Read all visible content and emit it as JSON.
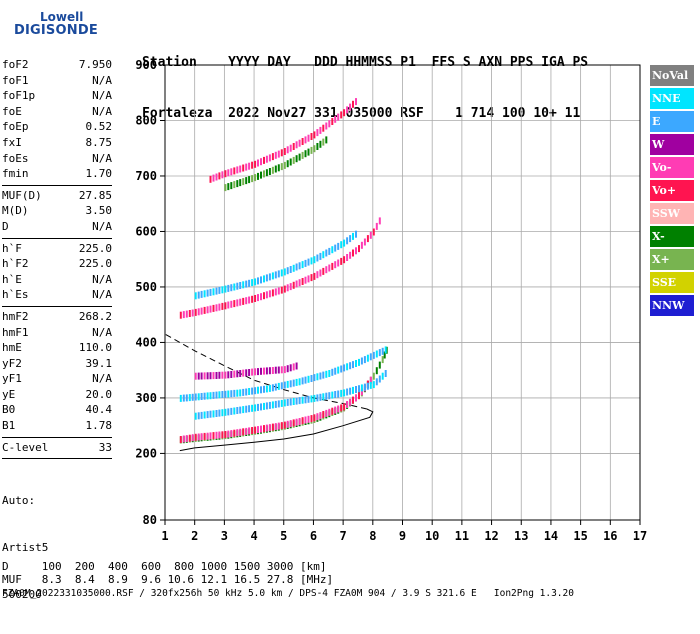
{
  "logo": {
    "top": "Lowell",
    "main": "DIGISONDE"
  },
  "header": {
    "line1": "Station    YYYY DAY   DDD HHMMSS P1  FFS S AXN PPS IGA PS",
    "line2": "Fortaleza  2022 Nov27 331 035000 RSF    1 714 100 10+ 11"
  },
  "params_a": [
    {
      "name": "foF2",
      "value": "7.950"
    },
    {
      "name": "foF1",
      "value": "N/A"
    },
    {
      "name": "foF1p",
      "value": "N/A"
    },
    {
      "name": "foE",
      "value": "N/A"
    },
    {
      "name": "foEp",
      "value": "0.52"
    },
    {
      "name": "fxI",
      "value": "8.75"
    },
    {
      "name": "foEs",
      "value": "N/A"
    },
    {
      "name": "fmin",
      "value": "1.70"
    }
  ],
  "params_b": [
    {
      "name": "MUF(D)",
      "value": "27.85"
    },
    {
      "name": "M(D)",
      "value": "3.50"
    },
    {
      "name": "D",
      "value": "N/A"
    }
  ],
  "params_c": [
    {
      "name": "h`F",
      "value": "225.0"
    },
    {
      "name": "h`F2",
      "value": "225.0"
    },
    {
      "name": "h`E",
      "value": "N/A"
    },
    {
      "name": "h`Es",
      "value": "N/A"
    }
  ],
  "params_d": [
    {
      "name": "hmF2",
      "value": "268.2"
    },
    {
      "name": "hmF1",
      "value": "N/A"
    },
    {
      "name": "hmE",
      "value": "110.0"
    },
    {
      "name": "yF2",
      "value": "39.1"
    },
    {
      "name": "yF1",
      "value": "N/A"
    },
    {
      "name": "yE",
      "value": "20.0"
    },
    {
      "name": "B0",
      "value": "40.4"
    },
    {
      "name": "B1",
      "value": "1.78"
    }
  ],
  "params_e": [
    {
      "name": "C-level",
      "value": "33"
    }
  ],
  "autoscale": {
    "line1": "Auto:",
    "line2": "Artist5",
    "line3": "500200"
  },
  "legend": [
    {
      "label": "NoVal",
      "color": "#808080"
    },
    {
      "label": "NNE",
      "color": "#00e5ff"
    },
    {
      "label": "E",
      "color": "#3ca8ff"
    },
    {
      "label": "W",
      "color": "#a000a0"
    },
    {
      "label": "Vo-",
      "color": "#ff3cb4"
    },
    {
      "label": "Vo+",
      "color": "#ff1450"
    },
    {
      "label": "SSW",
      "color": "#ffb4b4"
    },
    {
      "label": "X-",
      "color": "#008000"
    },
    {
      "label": "X+",
      "color": "#78b450"
    },
    {
      "label": "SSE",
      "color": "#d2d200"
    },
    {
      "label": "NNW",
      "color": "#1e1ed2"
    }
  ],
  "bottom": {
    "d_line": "D     100  200  400  600  800 1000 1500 3000 [km]",
    "muf_line": "MUF   8.3  8.4  8.9  9.6 10.6 12.1 16.5 27.8 [MHz]",
    "file_line": "FZA0M_2022331035000.RSF / 320fx256h 50 kHz 5.0 km / DPS-4 FZA0M 904 / 3.9 S 321.6 E   Ion2Png 1.3.20"
  },
  "chart_data": {
    "type": "scatter",
    "x_ticks": [
      "1",
      "2",
      "3",
      "4",
      "5",
      "6",
      "7",
      "8",
      "9",
      "10",
      "11",
      "12",
      "13",
      "14",
      "15",
      "16",
      "17"
    ],
    "y_ticks": [
      "80",
      "200",
      "300",
      "400",
      "500",
      "600",
      "700",
      "800",
      "900"
    ],
    "xlim": [
      1,
      17
    ],
    "ylim": [
      80,
      900
    ],
    "grid": true,
    "x_unit": "MHz",
    "y_unit": "km",
    "traces": [
      {
        "mode": "X-",
        "points": [
          [
            1.5,
            225
          ],
          [
            2,
            228
          ],
          [
            3,
            233
          ],
          [
            4,
            241
          ],
          [
            5,
            250
          ],
          [
            6,
            262
          ],
          [
            7,
            283
          ],
          [
            7.6,
            310
          ],
          [
            8,
            340
          ],
          [
            8.3,
            370
          ],
          [
            8.5,
            395
          ]
        ]
      },
      {
        "mode": "Vo-",
        "points": [
          [
            1.5,
            226
          ],
          [
            2,
            230
          ],
          [
            3,
            235
          ],
          [
            4,
            243
          ],
          [
            5,
            252
          ],
          [
            6,
            265
          ],
          [
            7,
            285
          ],
          [
            7.5,
            305
          ],
          [
            8,
            340
          ]
        ]
      },
      {
        "mode": "E",
        "points": [
          [
            2,
            268
          ],
          [
            3,
            275
          ],
          [
            4,
            283
          ],
          [
            5,
            292
          ],
          [
            6,
            300
          ],
          [
            7,
            310
          ],
          [
            8,
            325
          ],
          [
            8.5,
            350
          ]
        ]
      },
      {
        "mode": "E",
        "points": [
          [
            1.5,
            300
          ],
          [
            2.5,
            305
          ],
          [
            3.5,
            310
          ],
          [
            4.5,
            318
          ],
          [
            5.5,
            330
          ],
          [
            6.5,
            345
          ],
          [
            7.5,
            365
          ],
          [
            8.5,
            390
          ]
        ]
      },
      {
        "mode": "W",
        "points": [
          [
            2,
            340
          ],
          [
            3,
            342
          ],
          [
            4,
            348
          ],
          [
            5,
            352
          ],
          [
            5.5,
            360
          ]
        ]
      },
      {
        "mode": "Vo-",
        "points": [
          [
            1.5,
            450
          ],
          [
            2,
            455
          ],
          [
            3,
            467
          ],
          [
            4,
            480
          ],
          [
            5,
            497
          ],
          [
            6,
            520
          ],
          [
            7,
            550
          ],
          [
            7.5,
            570
          ],
          [
            8,
            600
          ],
          [
            8.3,
            630
          ]
        ]
      },
      {
        "mode": "E",
        "points": [
          [
            2,
            485
          ],
          [
            3,
            497
          ],
          [
            4,
            510
          ],
          [
            5,
            528
          ],
          [
            6,
            550
          ],
          [
            7,
            580
          ],
          [
            7.5,
            600
          ]
        ]
      },
      {
        "mode": "Vo-",
        "points": [
          [
            2.5,
            695
          ],
          [
            3,
            705
          ],
          [
            4,
            722
          ],
          [
            5,
            745
          ],
          [
            6,
            775
          ],
          [
            7,
            815
          ],
          [
            7.5,
            840
          ]
        ]
      },
      {
        "mode": "X-",
        "points": [
          [
            3,
            680
          ],
          [
            4,
            698
          ],
          [
            5,
            720
          ],
          [
            6,
            750
          ],
          [
            6.5,
            770
          ]
        ]
      }
    ],
    "model_profile": [
      [
        1.5,
        205
      ],
      [
        2,
        210
      ],
      [
        3,
        215
      ],
      [
        4,
        220
      ],
      [
        5,
        226
      ],
      [
        6,
        235
      ],
      [
        7,
        250
      ],
      [
        7.9,
        265
      ],
      [
        8,
        275
      ],
      [
        7.8,
        280
      ],
      [
        7,
        290
      ],
      [
        6,
        300
      ],
      [
        5,
        315
      ],
      [
        4,
        332
      ],
      [
        3,
        358
      ],
      [
        2,
        385
      ],
      [
        1,
        415
      ]
    ]
  }
}
